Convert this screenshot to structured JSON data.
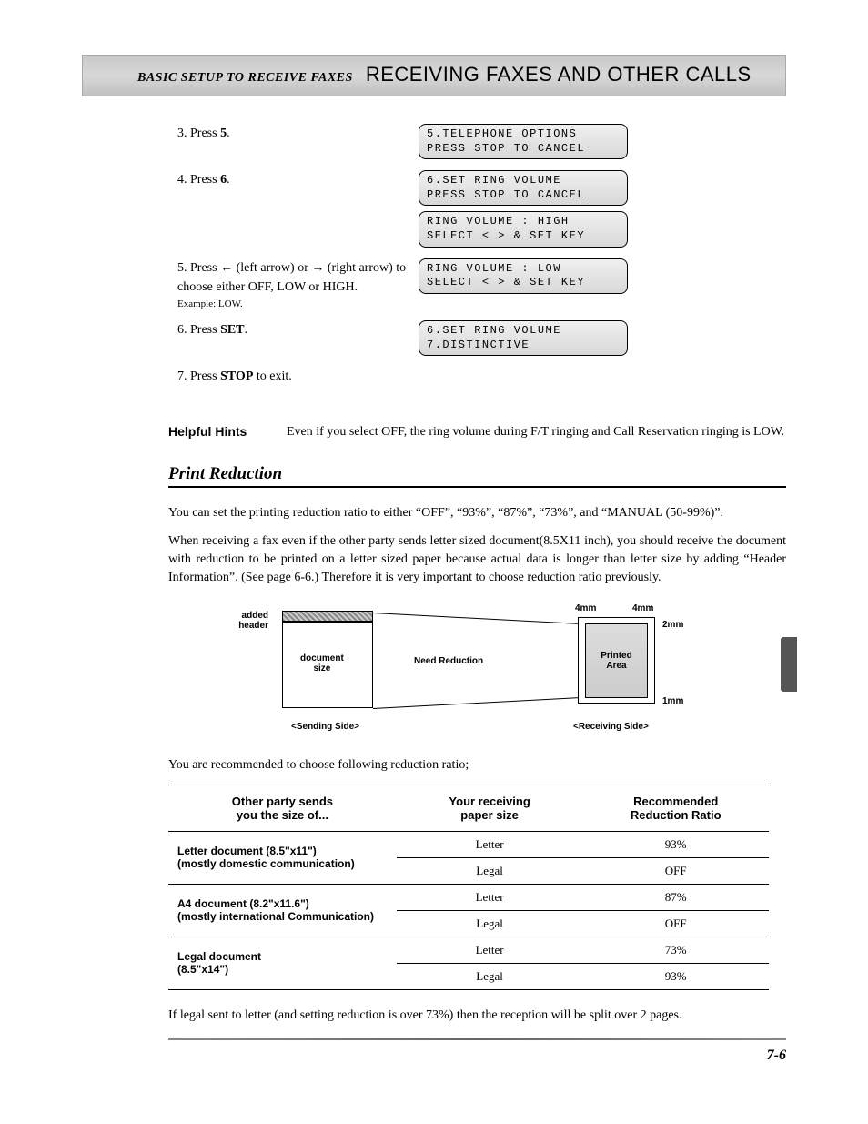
{
  "header": {
    "left": "BASIC SETUP TO RECEIVE FAXES",
    "right": "RECEIVING FAXES AND OTHER CALLS"
  },
  "steps": {
    "s3": {
      "num": "3.",
      "text": "Press ",
      "bold": "5",
      "tail": "."
    },
    "s4": {
      "num": "4.",
      "text": "Press ",
      "bold": "6",
      "tail": "."
    },
    "s5": {
      "num": "5.",
      "line1a": "Press ",
      "arrow_left": "←",
      "line1b": " (left arrow) or ",
      "arrow_right": "→",
      "line1c": " (right arrow) to choose either OFF, LOW or HIGH.",
      "example": "Example: LOW."
    },
    "s6": {
      "num": "6.",
      "text": "Press ",
      "bold": "SET",
      "tail": "."
    },
    "s7": {
      "num": "7.",
      "text": "Press ",
      "bold": "STOP",
      "tail": " to exit."
    }
  },
  "lcd": {
    "b1l1": "5.TELEPHONE OPTIONS",
    "b1l2": "PRESS STOP TO CANCEL",
    "b2l1": "6.SET RING VOLUME",
    "b2l2": "PRESS STOP TO CANCEL",
    "b3l1": "RING VOLUME : HIGH",
    "b3l2": "SELECT < > & SET KEY",
    "b4l1": "RING VOLUME : LOW",
    "b4l2": "SELECT < > & SET KEY",
    "b5l1": "6.SET RING VOLUME",
    "b5l2": "7.DISTINCTIVE"
  },
  "hints": {
    "label": "Helpful Hints",
    "text": "Even if you select OFF, the ring volume during F/T ringing and Call Reservation ringing is LOW."
  },
  "section": {
    "heading": "Print Reduction",
    "para1": "You can set the printing reduction ratio to either “OFF”, “93%”, “87%”, “73%”, and “MANUAL (50-99%)”.",
    "para2": "When receiving a fax even if the other party sends letter sized document(8.5X11 inch), you should receive the document with reduction to be printed on a letter sized paper because actual data is longer than letter size by adding “Header Information”. (See page 6-6.) Therefore it is very important to choose reduction ratio previously.",
    "rec_line": "You are recommended to choose following reduction ratio;",
    "para3": "If legal sent to letter (and setting reduction is over 73%) then the reception will be split over 2 pages."
  },
  "diagram": {
    "added_header": "added\nheader",
    "doc_size": "document\nsize",
    "need_reduction": "Need Reduction",
    "printed_area": "Printed\nArea",
    "sending": "<Sending Side>",
    "receiving": "<Receiving Side>",
    "m4a": "4mm",
    "m4b": "4mm",
    "m2": "2mm",
    "m1": "1mm"
  },
  "table": {
    "h1": "Other party sends\nyou the size of...",
    "h2": "Your receiving\npaper size",
    "h3": "Recommended\nReduction Ratio",
    "rows": [
      {
        "label": "Letter document (8.5\"x11\")\n(mostly domestic communication)",
        "r1p": "Letter",
        "r1r": "93%",
        "r2p": "Legal",
        "r2r": "OFF"
      },
      {
        "label": "A4 document (8.2\"x11.6\")\n(mostly international Communication)",
        "r1p": "Letter",
        "r1r": "87%",
        "r2p": "Legal",
        "r2r": "OFF"
      },
      {
        "label": "Legal document\n(8.5\"x14\")",
        "r1p": "Letter",
        "r1r": "73%",
        "r2p": "Legal",
        "r2r": "93%"
      }
    ]
  },
  "page_number": "7-6"
}
